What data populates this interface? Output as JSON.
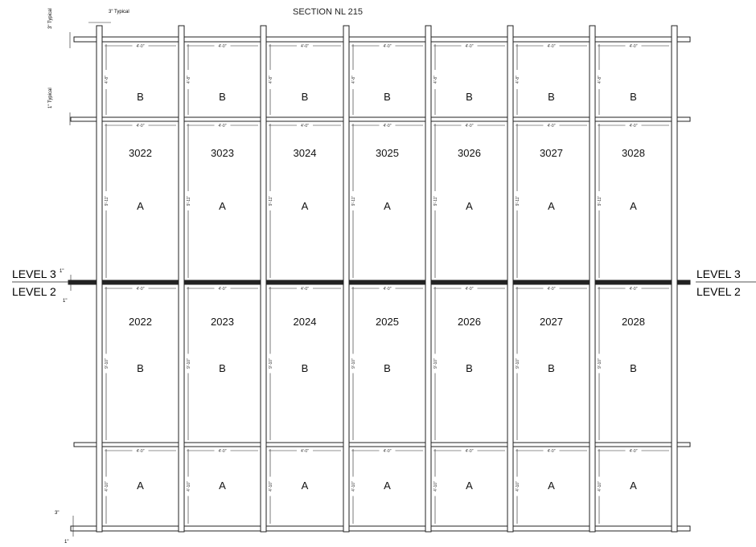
{
  "title": "SECTION NL 215",
  "notes": {
    "post_width": "3\" Typical",
    "shelf_top": "3\" Typical",
    "shelf_mid": "1\" Typical",
    "level_gap_top": "1\"",
    "level_gap_bottom": "1\"",
    "bottom_a": "3\"",
    "bottom_b": "1\""
  },
  "levels": {
    "upper": "LEVEL 3",
    "lower": "LEVEL 2"
  },
  "bay_width": "4'-0\"",
  "row_heights": {
    "level3_b": "4'-8\"",
    "level3_a": "9'-11\"",
    "level2_b": "9'-10\"",
    "level2_a": "4'-10\""
  },
  "level3": {
    "bays": [
      "3022",
      "3023",
      "3024",
      "3025",
      "3026",
      "3027",
      "3028"
    ],
    "top_label": "B",
    "bottom_label": "A"
  },
  "level2": {
    "bays": [
      "2022",
      "2023",
      "2024",
      "2025",
      "2026",
      "2027",
      "2028"
    ],
    "top_label": "B",
    "bottom_label": "A"
  },
  "colors": {
    "line": "#222222",
    "hatch": "#999999"
  }
}
